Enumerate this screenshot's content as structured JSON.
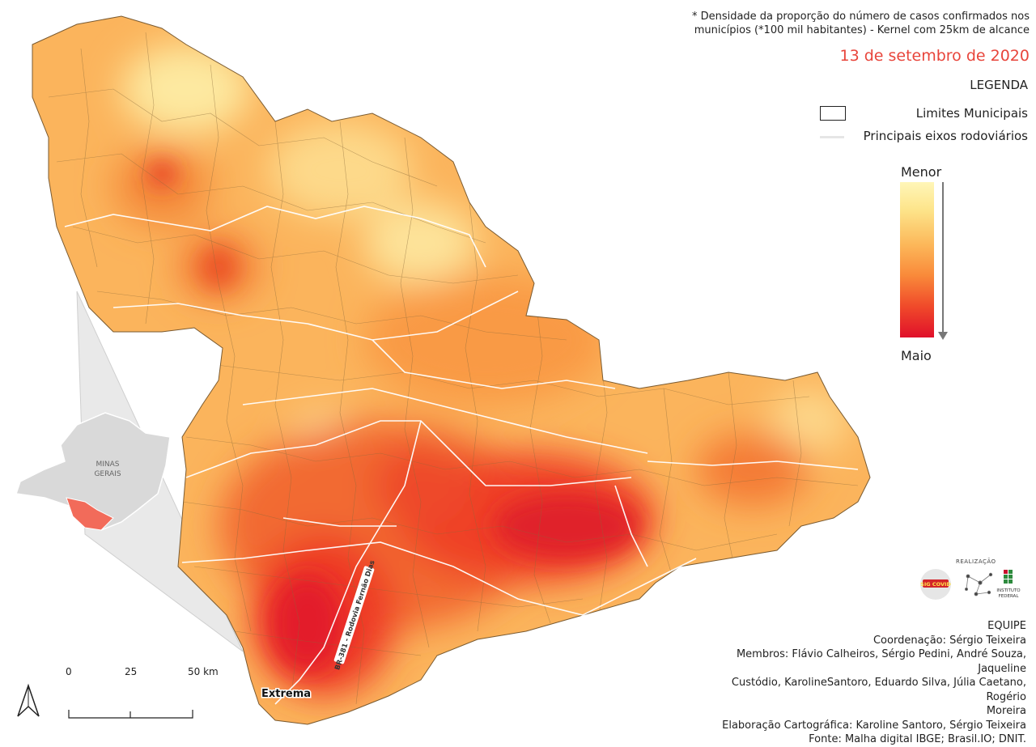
{
  "note": {
    "line1": "* Densidade da proporção do número de casos confirmados nos",
    "line2": "municípios (*100 mil habitantes) - Kernel com 25km de alcance"
  },
  "date": "13 de setembro de 2020",
  "legend": {
    "title": "LEGENDA",
    "municipal_limits": "Limites Municipais",
    "roads": "Principais eixos rodoviários",
    "scale_low": "Menor",
    "scale_high": "Maio",
    "colors": {
      "low": "#fff6b8",
      "mid": "#f98a3a",
      "high": "#e0102a"
    }
  },
  "inset": {
    "state_label_1": "MINAS",
    "state_label_2": "GERAIS"
  },
  "map_labels": {
    "city": "Extrema",
    "road": "BR-381 - Rodovia Fernão Dias"
  },
  "scale_bar": {
    "labels": [
      "0",
      "25",
      "50 km"
    ]
  },
  "logos": {
    "realizacao": "REALIZAÇÃO",
    "sigcovid": "SIG COVID",
    "instituto_1": "INSTITUTO",
    "instituto_2": "FEDERAL"
  },
  "team": {
    "title": "EQUIPE",
    "coordination": "Coordenação: Sérgio Teixeira",
    "members_1": "Membros: Flávio Calheiros, Sérgio Pedini, André Souza, Jaqueline",
    "members_2": "Custódio, KarolineSantoro, Eduardo Silva, Júlia Caetano, Rogério",
    "members_3": "Moreira",
    "cartography": "Elaboração Cartográfica: Karoline Santoro, Sérgio Teixeira",
    "source": "Fonte: Malha digital IBGE; Brasil.IO; DNIT."
  }
}
